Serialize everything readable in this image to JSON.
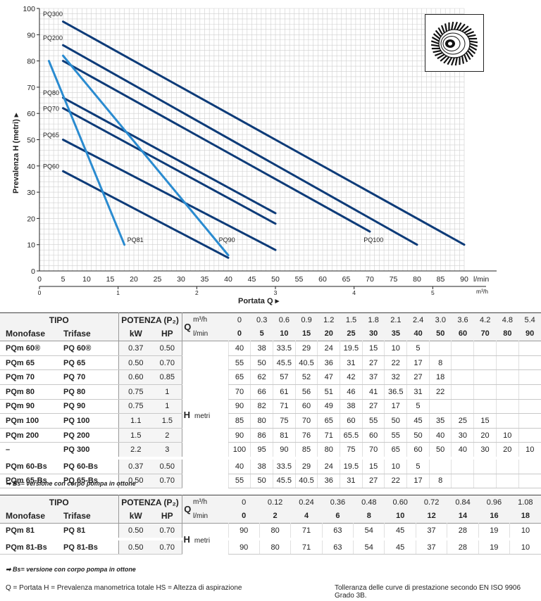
{
  "chart_data": {
    "type": "line",
    "xlabel": "Portata Q",
    "ylabel": "Prevalenza H (metri)",
    "x_unit_lmin": "l/min",
    "x_unit_m3h": "m³/h",
    "xlim": [
      0,
      90
    ],
    "ylim": [
      0,
      100
    ],
    "x_ticks": [
      "0",
      "5",
      "10",
      "15",
      "20",
      "25",
      "30",
      "35",
      "40",
      "45",
      "50",
      "55",
      "60",
      "65",
      "70",
      "75",
      "80",
      "85",
      "90"
    ],
    "y_ticks": [
      "0",
      "10",
      "20",
      "30",
      "40",
      "50",
      "60",
      "70",
      "80",
      "90",
      "100"
    ],
    "x2_ticks": [
      "0",
      "1",
      "2",
      "3",
      "4",
      "5"
    ],
    "series": [
      {
        "name": "PQ300",
        "color": "#0d3b78",
        "x": [
          5,
          90
        ],
        "y": [
          95,
          10
        ]
      },
      {
        "name": "PQ200",
        "color": "#0d3b78",
        "x": [
          5,
          80
        ],
        "y": [
          86,
          10
        ]
      },
      {
        "name": "PQ100",
        "color": "#0d3b78",
        "x": [
          5,
          70
        ],
        "y": [
          80,
          15
        ]
      },
      {
        "name": "PQ80",
        "color": "#0d3b78",
        "x": [
          5,
          50
        ],
        "y": [
          66,
          22
        ]
      },
      {
        "name": "PQ70",
        "color": "#0d3b78",
        "x": [
          5,
          50
        ],
        "y": [
          62,
          18
        ]
      },
      {
        "name": "PQ65",
        "color": "#0d3b78",
        "x": [
          5,
          50
        ],
        "y": [
          50,
          8
        ]
      },
      {
        "name": "PQ60",
        "color": "#0d3b78",
        "x": [
          5,
          40
        ],
        "y": [
          38,
          5
        ]
      },
      {
        "name": "PQ90",
        "color": "#2a8bd0",
        "x": [
          5,
          40
        ],
        "y": [
          82,
          6
        ]
      },
      {
        "name": "PQ81",
        "color": "#2a8bd0",
        "x": [
          2,
          18
        ],
        "y": [
          80,
          10
        ]
      }
    ]
  },
  "table1": {
    "tipo": "TIPO",
    "potenza": "POTENZA (P₂)",
    "q": "Q",
    "m3h": "m³/h",
    "lmin": "l/min",
    "monofase": "Monofase",
    "trifase": "Trifase",
    "kw": "kW",
    "hp": "HP",
    "h": "H",
    "metri": "metri",
    "m3h_values": [
      "0",
      "0.3",
      "0.6",
      "0.9",
      "1.2",
      "1.5",
      "1.8",
      "2.1",
      "2.4",
      "3.0",
      "3.6",
      "4.2",
      "4.8",
      "5.4"
    ],
    "lmin_values": [
      "0",
      "5",
      "10",
      "15",
      "20",
      "25",
      "30",
      "35",
      "40",
      "50",
      "60",
      "70",
      "80",
      "90"
    ],
    "rows": [
      {
        "mono": "PQm 60®",
        "tri": "PQ 60®",
        "kw": "0.37",
        "hp": "0.50",
        "h": [
          "40",
          "38",
          "33.5",
          "29",
          "24",
          "19.5",
          "15",
          "10",
          "5",
          "",
          "",
          "",
          "",
          ""
        ]
      },
      {
        "mono": "PQm 65",
        "tri": "PQ 65",
        "kw": "0.50",
        "hp": "0.70",
        "h": [
          "55",
          "50",
          "45.5",
          "40.5",
          "36",
          "31",
          "27",
          "22",
          "17",
          "8",
          "",
          "",
          "",
          ""
        ]
      },
      {
        "mono": "PQm 70",
        "tri": "PQ 70",
        "kw": "0.60",
        "hp": "0.85",
        "h": [
          "65",
          "62",
          "57",
          "52",
          "47",
          "42",
          "37",
          "32",
          "27",
          "18",
          "",
          "",
          "",
          ""
        ]
      },
      {
        "mono": "PQm 80",
        "tri": "PQ 80",
        "kw": "0.75",
        "hp": "1",
        "h": [
          "70",
          "66",
          "61",
          "56",
          "51",
          "46",
          "41",
          "36.5",
          "31",
          "22",
          "",
          "",
          "",
          ""
        ]
      },
      {
        "mono": "PQm 90",
        "tri": "PQ 90",
        "kw": "0.75",
        "hp": "1",
        "h": [
          "90",
          "82",
          "71",
          "60",
          "49",
          "38",
          "27",
          "17",
          "5",
          "",
          "",
          "",
          "",
          ""
        ]
      },
      {
        "mono": "PQm 100",
        "tri": "PQ 100",
        "kw": "1.1",
        "hp": "1.5",
        "h": [
          "85",
          "80",
          "75",
          "70",
          "65",
          "60",
          "55",
          "50",
          "45",
          "35",
          "25",
          "15",
          "",
          ""
        ]
      },
      {
        "mono": "PQm 200",
        "tri": "PQ 200",
        "kw": "1.5",
        "hp": "2",
        "h": [
          "90",
          "86",
          "81",
          "76",
          "71",
          "65.5",
          "60",
          "55",
          "50",
          "40",
          "30",
          "20",
          "10",
          ""
        ]
      },
      {
        "mono": "–",
        "tri": "PQ 300",
        "kw": "2.2",
        "hp": "3",
        "h": [
          "100",
          "95",
          "90",
          "85",
          "80",
          "75",
          "70",
          "65",
          "60",
          "50",
          "40",
          "30",
          "20",
          "10"
        ]
      },
      {
        "mono": "PQm 60-Bs",
        "tri": "PQ 60-Bs",
        "kw": "0.37",
        "hp": "0.50",
        "h": [
          "40",
          "38",
          "33.5",
          "29",
          "24",
          "19.5",
          "15",
          "10",
          "5",
          "",
          "",
          "",
          "",
          ""
        ]
      },
      {
        "mono": "PQm 65-Bs",
        "tri": "PQ 65-Bs",
        "kw": "0.50",
        "hp": "0.70",
        "h": [
          "55",
          "50",
          "45.5",
          "40.5",
          "36",
          "31",
          "27",
          "22",
          "17",
          "8",
          "",
          "",
          "",
          ""
        ]
      }
    ],
    "note": "➡ Bs= versione con corpo pompa in ottone"
  },
  "table2": {
    "tipo": "TIPO",
    "potenza": "POTENZA (P₂)",
    "q": "Q",
    "m3h": "m³/h",
    "lmin": "l/min",
    "monofase": "Monofase",
    "trifase": "Trifase",
    "kw": "kW",
    "hp": "HP",
    "h": "H",
    "metri": "metri",
    "m3h_values": [
      "0",
      "0.12",
      "0.24",
      "0.36",
      "0.48",
      "0.60",
      "0.72",
      "0.84",
      "0.96",
      "1.08"
    ],
    "lmin_values": [
      "0",
      "2",
      "4",
      "6",
      "8",
      "10",
      "12",
      "14",
      "16",
      "18"
    ],
    "rows": [
      {
        "mono": "PQm 81",
        "tri": "PQ 81",
        "kw": "0.50",
        "hp": "0.70",
        "h": [
          "90",
          "80",
          "71",
          "63",
          "54",
          "45",
          "37",
          "28",
          "19",
          "10"
        ]
      },
      {
        "mono": "PQm 81-Bs",
        "tri": "PQ 81-Bs",
        "kw": "0.50",
        "hp": "0.70",
        "h": [
          "90",
          "80",
          "71",
          "63",
          "54",
          "45",
          "37",
          "28",
          "19",
          "10"
        ]
      }
    ],
    "note": "➡ Bs= versione con corpo pompa in ottone"
  },
  "footer": {
    "legend": "Q = Portata   H = Prevalenza manometrica totale   HS = Altezza di aspirazione",
    "tolerance": "Tolleranza delle curve di prestazione secondo EN ISO 9906 Grado 3B."
  }
}
